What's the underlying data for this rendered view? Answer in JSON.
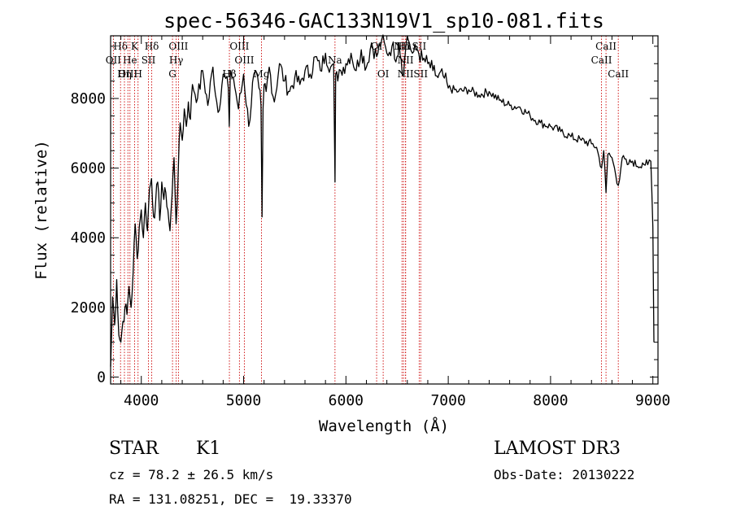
{
  "chart_data": {
    "type": "line",
    "title": "spec-56346-GAC133N19V1_sp10-081.fits",
    "xlabel": "Wavelength (Å)",
    "ylabel": "Flux (relative)",
    "xlim": [
      3700,
      9050
    ],
    "ylim": [
      -200,
      9800
    ],
    "xticks": [
      4000,
      5000,
      6000,
      7000,
      8000,
      9000
    ],
    "yticks": [
      0,
      2000,
      4000,
      6000,
      8000
    ],
    "series": [
      {
        "name": "flux",
        "x": [
          3700,
          3720,
          3740,
          3760,
          3780,
          3800,
          3820,
          3840,
          3860,
          3880,
          3900,
          3920,
          3940,
          3960,
          3980,
          4000,
          4020,
          4040,
          4060,
          4080,
          4100,
          4120,
          4140,
          4160,
          4180,
          4200,
          4220,
          4240,
          4260,
          4280,
          4300,
          4320,
          4340,
          4360,
          4380,
          4400,
          4420,
          4440,
          4460,
          4480,
          4500,
          4550,
          4600,
          4650,
          4700,
          4750,
          4800,
          4850,
          4860,
          4870,
          4900,
          4950,
          5000,
          5050,
          5100,
          5150,
          5170,
          5180,
          5190,
          5200,
          5220,
          5250,
          5300,
          5350,
          5400,
          5450,
          5500,
          5550,
          5600,
          5650,
          5700,
          5750,
          5800,
          5850,
          5880,
          5893,
          5900,
          5920,
          5950,
          6000,
          6050,
          6100,
          6150,
          6200,
          6250,
          6300,
          6350,
          6400,
          6450,
          6500,
          6520,
          6540,
          6563,
          6580,
          6600,
          6620,
          6650,
          6700,
          6750,
          6800,
          6850,
          6900,
          6950,
          7000,
          7100,
          7200,
          7300,
          7400,
          7500,
          7600,
          7700,
          7800,
          7900,
          8000,
          8100,
          8200,
          8300,
          8400,
          8450,
          8498,
          8520,
          8542,
          8560,
          8600,
          8662,
          8700,
          8750,
          8800,
          8850,
          8900,
          8950,
          8980,
          9000,
          9010
        ],
        "y": [
          300,
          2300,
          1500,
          2800,
          1200,
          1000,
          1600,
          2000,
          1800,
          2600,
          2000,
          3000,
          4400,
          3400,
          4300,
          4800,
          4000,
          5000,
          4200,
          5400,
          5700,
          4600,
          5000,
          5600,
          4500,
          5600,
          5100,
          5300,
          4800,
          4200,
          5200,
          6300,
          4400,
          5800,
          7300,
          6800,
          7700,
          7200,
          7900,
          7400,
          8400,
          8000,
          8800,
          7800,
          8900,
          7600,
          8700,
          8300,
          7200,
          8800,
          8600,
          7700,
          8700,
          7200,
          8700,
          8300,
          7800,
          4600,
          7700,
          8400,
          8200,
          8900,
          7900,
          9000,
          8500,
          8200,
          8600,
          8400,
          8800,
          8700,
          9200,
          8800,
          9300,
          8900,
          9000,
          5600,
          8700,
          8500,
          8800,
          9000,
          9300,
          8800,
          9400,
          8900,
          9600,
          9200,
          9700,
          9300,
          9500,
          9200,
          9600,
          9100,
          8700,
          9300,
          9800,
          9600,
          9300,
          9400,
          9100,
          9000,
          8800,
          8600,
          8650,
          8300,
          8200,
          8250,
          8100,
          8200,
          7950,
          7800,
          7750,
          7500,
          7300,
          7200,
          7050,
          6900,
          6800,
          6700,
          6600,
          6000,
          6500,
          5300,
          6400,
          6300,
          5500,
          6300,
          6100,
          6200,
          6050,
          6150,
          6100,
          6200,
          4300,
          1000
        ]
      }
    ],
    "lines": [
      {
        "label": "Hδ",
        "x": 3797,
        "row": 0
      },
      {
        "label": "OII",
        "x": 3727,
        "row": 1
      },
      {
        "label": "OIII",
        "x": 3869,
        "row": 2
      },
      {
        "label": "K",
        "x": 3934,
        "row": 0
      },
      {
        "label": "He",
        "x": 3889,
        "row": 1
      },
      {
        "label": "Hη",
        "x": 3835,
        "row": 2
      },
      {
        "label": "Hδ",
        "x": 4102,
        "row": 0
      },
      {
        "label": "SII",
        "x": 4070,
        "row": 1
      },
      {
        "label": "H",
        "x": 3968,
        "row": 2
      },
      {
        "label": "OIII",
        "x": 4363,
        "row": 0
      },
      {
        "label": "Hγ",
        "x": 4341,
        "row": 1
      },
      {
        "label": "G",
        "x": 4305,
        "row": 2
      },
      {
        "label": "Hβ",
        "x": 4861,
        "row": 2
      },
      {
        "label": "OIII",
        "x": 4959,
        "row": 0
      },
      {
        "label": "OIII",
        "x": 5007,
        "row": 1
      },
      {
        "label": "Mg",
        "x": 5175,
        "row": 2
      },
      {
        "label": "Na",
        "x": 5893,
        "row": 1
      },
      {
        "label": "OI",
        "x": 6300,
        "row": 0
      },
      {
        "label": "OI",
        "x": 6364,
        "row": 2
      },
      {
        "label": "NII",
        "x": 6548,
        "row": 0
      },
      {
        "label": "Hα",
        "x": 6563,
        "row": 0
      },
      {
        "label": "NII",
        "x": 6583,
        "row": 1
      },
      {
        "label": "SII",
        "x": 6716,
        "row": 0
      },
      {
        "label": "NII",
        "x": 6583,
        "row": 2
      },
      {
        "label": "SII",
        "x": 6731,
        "row": 2
      },
      {
        "label": "CaII",
        "x": 8542,
        "row": 0
      },
      {
        "label": "CaII",
        "x": 8498,
        "row": 1
      },
      {
        "label": "CaII",
        "x": 8662,
        "row": 2
      }
    ]
  },
  "info": {
    "class": "STAR",
    "subclass": "K1",
    "survey": "LAMOST DR3",
    "cz": "cz = 78.2 ± 26.5 km/s",
    "obs_date": "Obs-Date: 20130222",
    "radec": "RA = 131.08251, DEC =  19.33370"
  }
}
